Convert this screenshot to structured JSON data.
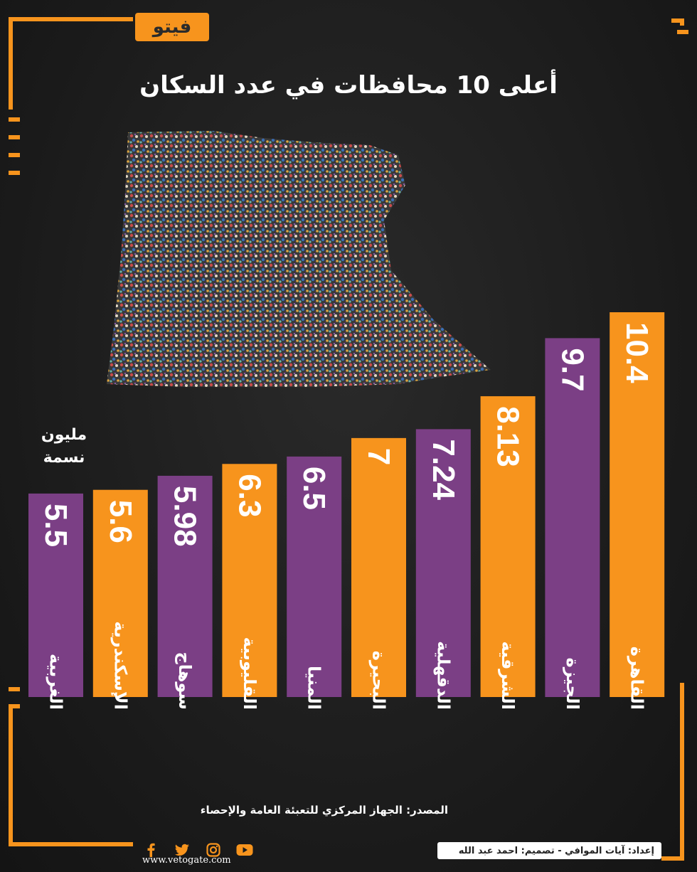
{
  "brand": {
    "logo_text": "فيتو",
    "website": "www.vetogate.com"
  },
  "header": {
    "title": "أعلى 10 محافظات في عدد السكان"
  },
  "unit_label": {
    "line1": "مليون",
    "line2": "نسمة"
  },
  "footer": {
    "source": "المصدر: الجهاز المركزي للتعبئة العامة والإحصاء",
    "credit": "إعداد: آيات الموافي  - تصميم: احمد عبد الله"
  },
  "social_icons": [
    "facebook-icon",
    "twitter-icon",
    "instagram-icon",
    "youtube-icon"
  ],
  "colors": {
    "purple": "#7b3f85",
    "orange": "#f7941d",
    "background": "#1d1d1d"
  },
  "chart_data": {
    "type": "bar",
    "orientation": "vertical",
    "categories": [
      "الغربية",
      "الإسكندرية",
      "سوهاج",
      "القليوبية",
      "المنيا",
      "البحيرة",
      "الدقهلية",
      "الشرقية",
      "الجيزة",
      "القاهرة"
    ],
    "value_labels": [
      "5.5",
      "5.6",
      "5.98",
      "6.3",
      "6.5",
      "7",
      "7.24",
      "8.13",
      "9.7",
      "10.4"
    ],
    "values": [
      5.5,
      5.6,
      5.98,
      6.3,
      6.5,
      7,
      7.24,
      8.13,
      9.7,
      10.4
    ],
    "bar_colors": [
      "#7b3f85",
      "#f7941d",
      "#7b3f85",
      "#f7941d",
      "#7b3f85",
      "#f7941d",
      "#7b3f85",
      "#f7941d",
      "#7b3f85",
      "#f7941d"
    ],
    "title": "أعلى 10 محافظات في عدد السكان",
    "ylabel": "مليون نسمة",
    "grid": false,
    "legend": false
  }
}
